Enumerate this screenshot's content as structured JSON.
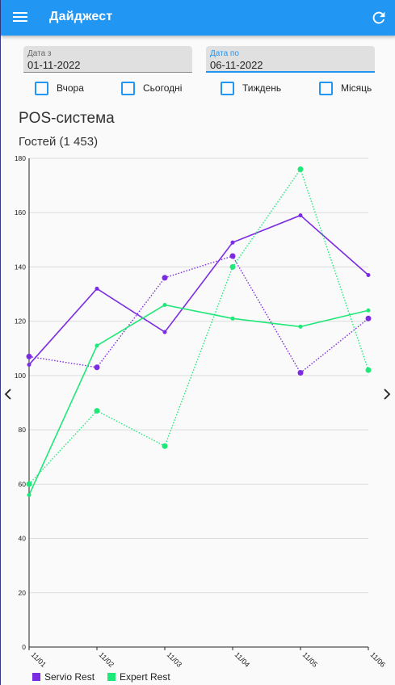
{
  "app": {
    "title": "Дайджест"
  },
  "filters": {
    "date_from": {
      "label": "Дата з",
      "value": "01-11-2022"
    },
    "date_to": {
      "label": "Дата по",
      "value": "06-11-2022"
    },
    "checkboxes": [
      "Вчора",
      "Сьогодні",
      "Тиждень",
      "Місяць"
    ]
  },
  "section": {
    "title": "POS-система",
    "subtitle": "Гостей (1 453)"
  },
  "colors": {
    "primary": "#2196f3",
    "servio": "#7b2be2",
    "expert": "#1ee878"
  },
  "icons": {
    "menu": "menu-icon",
    "refresh": "refresh-icon",
    "prev": "chevron-left-icon",
    "next": "chevron-right-icon"
  },
  "chart_data": {
    "type": "line",
    "categories": [
      "11/01",
      "11/02",
      "11/03",
      "11/04",
      "11/05",
      "11/06"
    ],
    "ylim": [
      0,
      180
    ],
    "yticks": [
      "0",
      "20",
      "40",
      "60",
      "80",
      "100",
      "120",
      "140",
      "160",
      "180"
    ],
    "grid": true,
    "legend": "bottom-left",
    "series": [
      {
        "name": "Servio Rest",
        "style": "solid",
        "values": [
          104,
          132,
          116,
          149,
          159,
          137
        ]
      },
      {
        "name": "Servio Rest",
        "style": "dotted",
        "values": [
          107,
          103,
          136,
          144,
          101,
          121
        ]
      },
      {
        "name": "Expert Rest",
        "style": "solid",
        "values": [
          56,
          111,
          126,
          121,
          118,
          124
        ]
      },
      {
        "name": "Expert Rest",
        "style": "dotted",
        "values": [
          60,
          87,
          74,
          140,
          176,
          102
        ]
      }
    ],
    "legend_items": [
      "Servio Rest",
      "Expert Rest"
    ]
  }
}
